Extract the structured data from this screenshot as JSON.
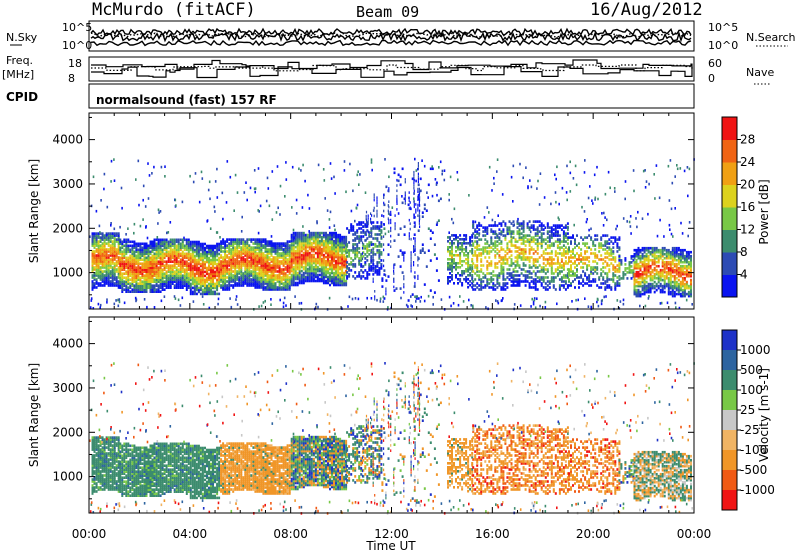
{
  "header": {
    "station": "McMurdo (fitACF)",
    "beam": "Beam 09",
    "date": "16/Aug/2012",
    "nsky_label": "N.Sky",
    "nsearch_label": "N.Search",
    "freq_label": "Freq.",
    "freq_unit": "[MHz]",
    "nave_label": "Nave",
    "cpid_label": "CPID",
    "cpid_value": "normalsound (fast) 157 RF",
    "noise_ticks_left": [
      "10^5",
      "10^0"
    ],
    "noise_ticks_right": [
      "10^5",
      "10^0"
    ],
    "freq_ticks_left": [
      "18",
      "8"
    ],
    "freq_ticks_right": [
      "60",
      "0"
    ]
  },
  "chart_data": [
    {
      "type": "heatmap",
      "title": "",
      "xlabel": "Time UT",
      "ylabel": "Slant Range [km]",
      "x_ticks": [
        "00:00",
        "04:00",
        "08:00",
        "12:00",
        "16:00",
        "20:00",
        "00:00"
      ],
      "xlim_hours": [
        0,
        24
      ],
      "y_ticks": [
        1000,
        2000,
        3000,
        4000
      ],
      "ylim": [
        180,
        4600
      ],
      "colorbar": {
        "label": "Power [dB]",
        "ticks": [
          "4",
          "8",
          "12",
          "16",
          "20",
          "24",
          "28"
        ],
        "colors": [
          "#0a14f0",
          "#2d4bb4",
          "#3c8c6e",
          "#78c846",
          "#dcd21e",
          "#f0a014",
          "#f06414",
          "#f01414"
        ]
      }
    },
    {
      "type": "heatmap",
      "title": "",
      "xlabel": "Time UT",
      "ylabel": "Slant Range [km]",
      "x_ticks": [
        "00:00",
        "04:00",
        "08:00",
        "12:00",
        "16:00",
        "20:00",
        "00:00"
      ],
      "xlim_hours": [
        0,
        24
      ],
      "y_ticks": [
        1000,
        2000,
        3000,
        4000
      ],
      "ylim": [
        180,
        4600
      ],
      "colorbar": {
        "label": "Velocity [m s-1]",
        "ticks": [
          "1000",
          "500",
          "100",
          "25",
          "-25",
          "-100",
          "-500",
          "-1000"
        ],
        "colors": [
          "#1e32c8",
          "#2d64a0",
          "#3c8c6e",
          "#78c846",
          "#c8c8c8",
          "#f0b464",
          "#f09628",
          "#f05a14",
          "#f01414"
        ]
      }
    }
  ]
}
